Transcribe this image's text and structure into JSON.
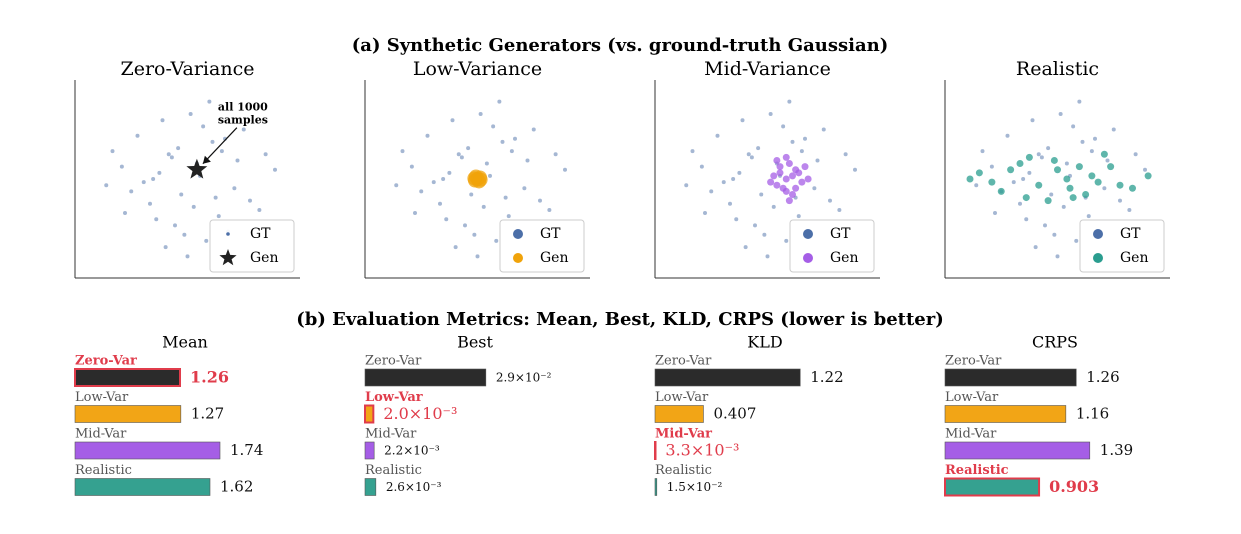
{
  "header": {
    "title_a": "(a) Synthetic Generators (vs. ground-truth Gaussian)",
    "title_b": "(b) Evaluation Metrics: Mean, Best, KLD, CRPS  (lower is better)"
  },
  "chart_data": [
    {
      "type": "scatter",
      "title": "Zero-Variance",
      "xlim": [
        -3.6,
        3.6
      ],
      "ylim": [
        -3.2,
        3.2
      ],
      "legend": "lower right",
      "annotation": [
        "all 1000",
        "samples"
      ],
      "series": [
        {
          "name": "GT",
          "color": "#4c6fa8",
          "marker": "dot",
          "x": [
            0.3,
            -1.2,
            0.8,
            1.5,
            -0.4,
            -2.1,
            0.1,
            1.1,
            -0.9,
            2.3,
            -1.6,
            0.6,
            -0.2,
            1.8,
            -1.0,
            0.4,
            -2.6,
            1.3,
            -0.6,
            0.9,
            2.8,
            -1.4,
            0.0,
            -0.3,
            1.6,
            -2.0,
            0.7,
            -0.8,
            2.0,
            -1.1,
            0.2,
            -0.5,
            1.0,
            -1.8,
            0.5,
            -0.1,
            1.2,
            -2.4,
            2.5,
            -0.7
          ],
          "y": [
            0.5,
            -0.8,
            1.2,
            -0.3,
            -1.5,
            0.4,
            2.1,
            0.9,
            0.2,
            -1.0,
            1.4,
            -2.0,
            -0.5,
            1.6,
            -1.3,
            0.1,
            -0.2,
            -1.7,
            0.8,
            -0.6,
            0.3,
            -0.1,
            -2.5,
            1.0,
            0.6,
            -1.1,
            2.5,
            1.9,
            -0.7,
            0.0,
            -0.9,
            0.7,
            -1.2,
            -0.4,
            1.7,
            -1.8,
            1.3,
            0.9,
            0.8,
            -2.2
          ]
        },
        {
          "name": "Gen",
          "color": "#222222",
          "marker": "star",
          "x": [
            0.3
          ],
          "y": [
            0.3
          ]
        }
      ]
    },
    {
      "type": "scatter",
      "title": "Low-Variance",
      "xlim": [
        -3.6,
        3.6
      ],
      "ylim": [
        -3.2,
        3.2
      ],
      "legend": "lower right",
      "series": [
        {
          "name": "GT",
          "color": "#4c6fa8",
          "marker": "dot",
          "x": [
            0.3,
            -1.2,
            0.8,
            1.5,
            -0.4,
            -2.1,
            0.1,
            1.1,
            -0.9,
            2.3,
            -1.6,
            0.6,
            -0.2,
            1.8,
            -1.0,
            0.4,
            -2.6,
            1.3,
            -0.6,
            0.9,
            2.8,
            -1.4,
            0.0,
            -0.3,
            1.6,
            -2.0,
            0.7,
            -0.8,
            2.0,
            -1.1,
            0.2,
            -0.5,
            1.0,
            -1.8,
            0.5,
            -0.1,
            1.2,
            -2.4,
            2.5,
            -0.7
          ],
          "y": [
            0.5,
            -0.8,
            1.2,
            -0.3,
            -1.5,
            0.4,
            2.1,
            0.9,
            0.2,
            -1.0,
            1.4,
            -2.0,
            -0.5,
            1.6,
            -1.3,
            0.1,
            -0.2,
            -1.7,
            0.8,
            -0.6,
            0.3,
            -0.1,
            -2.5,
            1.0,
            0.6,
            -1.1,
            2.5,
            1.9,
            -0.7,
            0.0,
            -0.9,
            0.7,
            -1.2,
            -0.4,
            1.7,
            -1.8,
            1.3,
            0.9,
            0.8,
            -2.2
          ]
        },
        {
          "name": "Gen",
          "color": "#f0a30a",
          "marker": "big",
          "x": [
            0.0,
            0.08,
            -0.08,
            0.05,
            -0.05,
            0.1,
            -0.1
          ],
          "y": [
            0.0,
            0.05,
            -0.05,
            -0.08,
            0.08,
            -0.02,
            0.02
          ]
        }
      ]
    },
    {
      "type": "scatter",
      "title": "Mid-Variance",
      "xlim": [
        -3.6,
        3.6
      ],
      "ylim": [
        -3.2,
        3.2
      ],
      "legend": "lower right",
      "series": [
        {
          "name": "GT",
          "color": "#4c6fa8",
          "marker": "dot",
          "x": [
            0.3,
            -1.2,
            0.8,
            1.5,
            -0.4,
            -2.1,
            0.1,
            1.1,
            -0.9,
            2.3,
            -1.6,
            0.6,
            -0.2,
            1.8,
            -1.0,
            0.4,
            -2.6,
            1.3,
            -0.6,
            0.9,
            2.8,
            -1.4,
            0.0,
            -0.3,
            1.6,
            -2.0,
            0.7,
            -0.8,
            2.0,
            -1.1,
            0.2,
            -0.5,
            1.0,
            -1.8,
            0.5,
            -0.1,
            1.2,
            -2.4,
            2.5,
            -0.7
          ],
          "y": [
            0.5,
            -0.8,
            1.2,
            -0.3,
            -1.5,
            0.4,
            2.1,
            0.9,
            0.2,
            -1.0,
            1.4,
            -2.0,
            -0.5,
            1.6,
            -1.3,
            0.1,
            -0.2,
            -1.7,
            0.8,
            -0.6,
            0.3,
            -0.1,
            -2.5,
            1.0,
            0.6,
            -1.1,
            2.5,
            1.9,
            -0.7,
            0.0,
            -0.9,
            0.7,
            -1.2,
            -0.4,
            1.7,
            -1.8,
            1.3,
            0.9,
            0.8,
            -2.2
          ]
        },
        {
          "name": "Gen",
          "color": "#a55ee6",
          "marker": "mid",
          "x": [
            0.6,
            0.9,
            0.3,
            0.7,
            1.1,
            0.4,
            0.8,
            0.2,
            1.0,
            0.5,
            0.6,
            1.3,
            0.1,
            0.7,
            0.9,
            0.4,
            0.6,
            1.2,
            0.3,
            0.8
          ],
          "y": [
            0.0,
            0.3,
            -0.2,
            0.5,
            -0.1,
            0.4,
            -0.5,
            0.1,
            0.2,
            -0.3,
            0.7,
            0.0,
            -0.1,
            -0.7,
            -0.3,
            0.2,
            -0.4,
            0.4,
            0.6,
            0.1
          ]
        }
      ]
    },
    {
      "type": "scatter",
      "title": "Realistic",
      "xlim": [
        -3.6,
        3.6
      ],
      "ylim": [
        -3.2,
        3.2
      ],
      "legend": "lower right",
      "series": [
        {
          "name": "GT",
          "color": "#4c6fa8",
          "marker": "dot",
          "x": [
            0.3,
            -1.2,
            0.8,
            1.5,
            -0.4,
            -2.1,
            0.1,
            1.1,
            -0.9,
            2.3,
            -1.6,
            0.6,
            -0.2,
            1.8,
            -1.0,
            0.4,
            -2.6,
            1.3,
            -0.6,
            0.9,
            2.8,
            -1.4,
            0.0,
            -0.3,
            1.6,
            -2.0,
            0.7,
            -0.8,
            2.0,
            -1.1,
            0.2,
            -0.5,
            1.0,
            -1.8,
            0.5,
            -0.1,
            1.2,
            -2.4,
            2.5,
            -0.7
          ],
          "y": [
            0.5,
            -0.8,
            1.2,
            -0.3,
            -1.5,
            0.4,
            2.1,
            0.9,
            0.2,
            -1.0,
            1.4,
            -2.0,
            -0.5,
            1.6,
            -1.3,
            0.1,
            -0.2,
            -1.7,
            0.8,
            -0.6,
            0.3,
            -0.1,
            -2.5,
            1.0,
            0.6,
            -1.1,
            2.5,
            1.9,
            -0.7,
            0.0,
            -0.9,
            0.7,
            -1.2,
            -0.4,
            1.7,
            -1.8,
            1.3,
            0.9,
            0.8,
            -2.2
          ]
        },
        {
          "name": "Gen",
          "color": "#2a9d8f",
          "marker": "mid",
          "x": [
            -2.5,
            -1.8,
            -1.2,
            -0.6,
            0.0,
            0.5,
            1.1,
            1.7,
            2.4,
            -2.1,
            -0.9,
            0.3,
            0.9,
            1.5,
            2.9,
            -1.5,
            -0.3,
            0.7,
            2.0,
            -2.8,
            1.3,
            -0.1,
            0.4,
            -1.0
          ],
          "y": [
            0.2,
            -0.4,
            0.5,
            -0.2,
            0.3,
            -0.6,
            0.1,
            0.4,
            -0.3,
            -0.1,
            0.7,
            0.0,
            -0.5,
            0.8,
            0.1,
            0.3,
            -0.7,
            0.4,
            -0.2,
            0.0,
            -0.1,
            0.6,
            -0.3,
            -0.6
          ]
        }
      ]
    },
    {
      "type": "barh",
      "title": "Mean",
      "xlim": [
        0,
        2.4
      ],
      "highlight": 0,
      "categories": [
        "Zero-Var",
        "Low-Var",
        "Mid-Var",
        "Realistic"
      ],
      "values": [
        1.26,
        1.27,
        1.74,
        1.62
      ],
      "colors": [
        "#2b2b2b",
        "#f2a516",
        "#a55ee6",
        "#35a190"
      ]
    },
    {
      "type": "barh",
      "title": "Best",
      "xlim": [
        0,
        0.048
      ],
      "highlight": 1,
      "categories": [
        "Zero-Var",
        "Low-Var",
        "Mid-Var",
        "Realistic"
      ],
      "values": [
        0.029,
        0.002,
        0.0022,
        0.0026
      ],
      "value_labels": [
        "2.9×10⁻²",
        "2.0×10⁻³",
        "2.2×10⁻³",
        "2.6×10⁻³"
      ],
      "colors": [
        "#2b2b2b",
        "#f2a516",
        "#a55ee6",
        "#35a190"
      ]
    },
    {
      "type": "barh",
      "title": "KLD",
      "xlim": [
        0,
        1.68
      ],
      "highlight": 2,
      "categories": [
        "Zero-Var",
        "Low-Var",
        "Mid-Var",
        "Realistic"
      ],
      "values": [
        1.22,
        0.407,
        0.0033,
        0.015
      ],
      "value_labels": [
        "1.22",
        "0.407",
        "3.3×10⁻³",
        "1.5×10⁻²"
      ],
      "colors": [
        "#2b2b2b",
        "#f2a516",
        "#a55ee6",
        "#35a190"
      ]
    },
    {
      "type": "barh",
      "title": "CRPS",
      "xlim": [
        0,
        1.92
      ],
      "highlight": 3,
      "categories": [
        "Zero-Var",
        "Low-Var",
        "Mid-Var",
        "Realistic"
      ],
      "values": [
        1.26,
        1.16,
        1.39,
        0.903
      ],
      "colors": [
        "#2b2b2b",
        "#f2a516",
        "#a55ee6",
        "#35a190"
      ]
    }
  ]
}
